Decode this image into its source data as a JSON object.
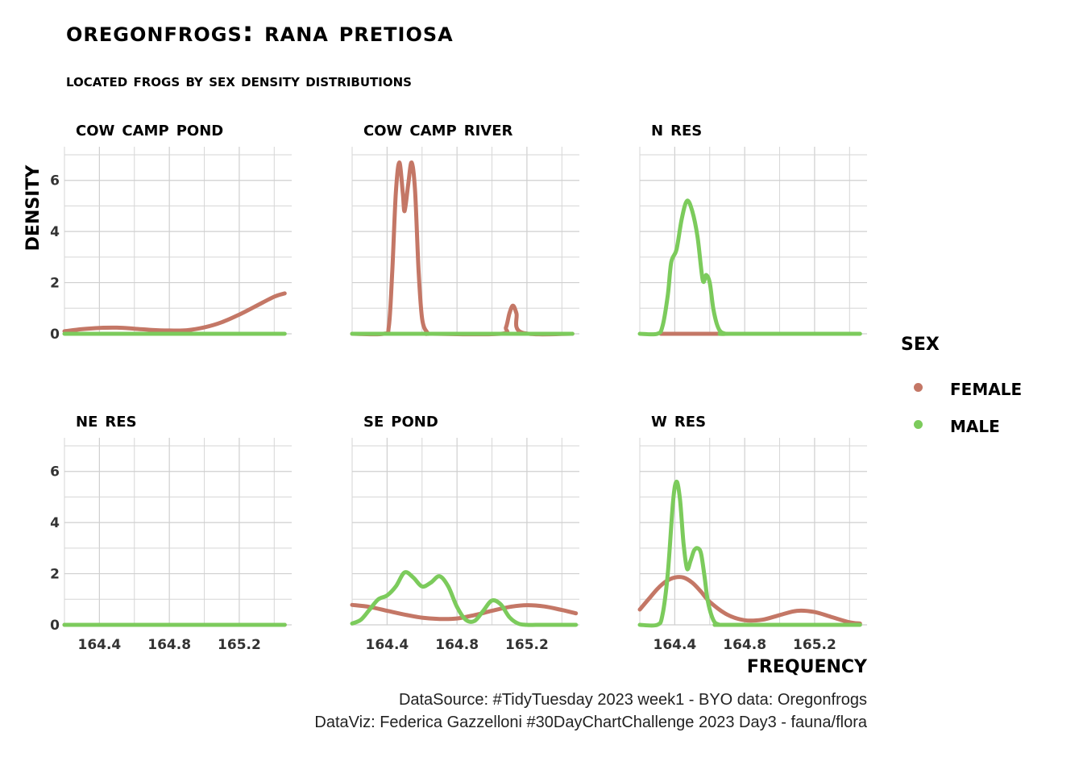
{
  "title": "oregonfrogs: rana pretiosa",
  "subtitle": "located frogs by sex density distributions",
  "caption": {
    "line1": "DataSource: #TidyTuesday 2023 week1 - BYO data: Oregonfrogs",
    "line2": "DataViz: Federica Gazzelloni #30DayChartChallenge 2023 Day3 - fauna/flora"
  },
  "legend": {
    "title": "sex",
    "items": [
      {
        "label": "female",
        "color": "#c47766"
      },
      {
        "label": "male",
        "color": "#7ccb5c"
      }
    ]
  },
  "chart_data": {
    "type": "line",
    "xlabel": "frequency",
    "ylabel": "density",
    "xlim": [
      164.2,
      165.5
    ],
    "ylim": [
      0,
      7
    ],
    "x_ticks": [
      164.4,
      164.8,
      165.2
    ],
    "x_tick_labels": [
      "164.4",
      "164.8",
      "165.2"
    ],
    "y_ticks": [
      0,
      2,
      4,
      6
    ],
    "y_tick_labels": [
      "0",
      "2",
      "4",
      "6"
    ],
    "grid": true,
    "legend_position": "right",
    "facets": [
      {
        "name": "cow camp pond",
        "series": [
          {
            "name": "female",
            "x": [
              164.2,
              164.3,
              164.4,
              164.5,
              164.6,
              164.7,
              164.8,
              164.9,
              165.0,
              165.1,
              165.2,
              165.3,
              165.4,
              165.46
            ],
            "y": [
              0.1,
              0.18,
              0.23,
              0.24,
              0.2,
              0.15,
              0.13,
              0.14,
              0.25,
              0.45,
              0.75,
              1.1,
              1.45,
              1.58
            ]
          },
          {
            "name": "male",
            "x": [
              164.2,
              165.46
            ],
            "y": [
              0,
              0
            ]
          }
        ]
      },
      {
        "name": "cow camp river",
        "series": [
          {
            "name": "female",
            "x": [
              164.2,
              164.38,
              164.41,
              164.43,
              164.45,
              164.47,
              164.49,
              164.5,
              164.52,
              164.54,
              164.56,
              164.58,
              164.6,
              164.63,
              164.66,
              165.05,
              165.08,
              165.1,
              165.12,
              165.14,
              165.17,
              165.46
            ],
            "y": [
              0,
              0,
              0.3,
              2.5,
              5.5,
              6.7,
              5.5,
              4.8,
              5.8,
              6.7,
              5.6,
              2.5,
              0.6,
              0.05,
              0,
              0,
              0.25,
              0.8,
              1.1,
              0.8,
              0.05,
              0
            ]
          },
          {
            "name": "male",
            "x": [
              164.2,
              165.46
            ],
            "y": [
              0,
              0
            ]
          }
        ]
      },
      {
        "name": "n res",
        "series": [
          {
            "name": "female",
            "x": [
              164.32,
              164.7
            ],
            "y": [
              0,
              0
            ]
          },
          {
            "name": "male",
            "x": [
              164.2,
              164.3,
              164.33,
              164.36,
              164.38,
              164.41,
              164.44,
              164.47,
              164.5,
              164.53,
              164.56,
              164.58,
              164.6,
              164.62,
              164.64,
              164.66,
              164.69,
              164.72,
              165.46
            ],
            "y": [
              0,
              0,
              0.3,
              1.5,
              2.8,
              3.3,
              4.5,
              5.2,
              4.8,
              3.8,
              2.1,
              2.3,
              2.0,
              1.0,
              0.4,
              0.1,
              0,
              0,
              0
            ]
          }
        ]
      },
      {
        "name": "ne res",
        "series": [
          {
            "name": "female",
            "x": [
              164.2,
              165.46
            ],
            "y": [
              0,
              0
            ]
          },
          {
            "name": "male",
            "x": [
              164.2,
              165.46
            ],
            "y": [
              0,
              0
            ]
          }
        ]
      },
      {
        "name": "se pond",
        "series": [
          {
            "name": "female",
            "x": [
              164.2,
              164.3,
              164.4,
              164.5,
              164.6,
              164.7,
              164.8,
              164.9,
              165.0,
              165.1,
              165.2,
              165.3,
              165.4,
              165.48
            ],
            "y": [
              0.78,
              0.7,
              0.55,
              0.4,
              0.28,
              0.23,
              0.25,
              0.38,
              0.55,
              0.7,
              0.77,
              0.72,
              0.58,
              0.45
            ]
          },
          {
            "name": "male",
            "x": [
              164.2,
              164.25,
              164.3,
              164.35,
              164.4,
              164.45,
              164.5,
              164.55,
              164.6,
              164.65,
              164.7,
              164.75,
              164.8,
              164.85,
              164.9,
              164.95,
              165.0,
              165.05,
              165.1,
              165.15,
              165.2,
              165.25,
              165.3,
              165.35,
              165.48
            ],
            "y": [
              0.05,
              0.2,
              0.6,
              1.0,
              1.15,
              1.5,
              2.05,
              1.85,
              1.5,
              1.65,
              1.9,
              1.5,
              0.7,
              0.2,
              0.15,
              0.55,
              0.95,
              0.8,
              0.3,
              0.05,
              0,
              0,
              0,
              0,
              0
            ]
          }
        ]
      },
      {
        "name": "w res",
        "series": [
          {
            "name": "female",
            "x": [
              164.2,
              164.25,
              164.3,
              164.35,
              164.4,
              164.45,
              164.5,
              164.55,
              164.6,
              164.7,
              164.8,
              164.9,
              165.0,
              165.1,
              165.2,
              165.3,
              165.4,
              165.46
            ],
            "y": [
              0.6,
              1.0,
              1.4,
              1.7,
              1.85,
              1.85,
              1.65,
              1.3,
              0.9,
              0.4,
              0.18,
              0.2,
              0.38,
              0.55,
              0.5,
              0.3,
              0.1,
              0.05
            ]
          },
          {
            "name": "male",
            "x": [
              164.2,
              164.3,
              164.33,
              164.36,
              164.39,
              164.41,
              164.43,
              164.45,
              164.47,
              164.49,
              164.51,
              164.53,
              164.55,
              164.57,
              164.59,
              164.62,
              164.65,
              164.7,
              165.46
            ],
            "y": [
              0,
              0,
              0.4,
              2.0,
              4.8,
              5.6,
              4.9,
              3.2,
              2.2,
              2.5,
              2.9,
              3.0,
              2.8,
              1.9,
              0.9,
              0.2,
              0.02,
              0,
              0
            ]
          }
        ]
      }
    ]
  }
}
